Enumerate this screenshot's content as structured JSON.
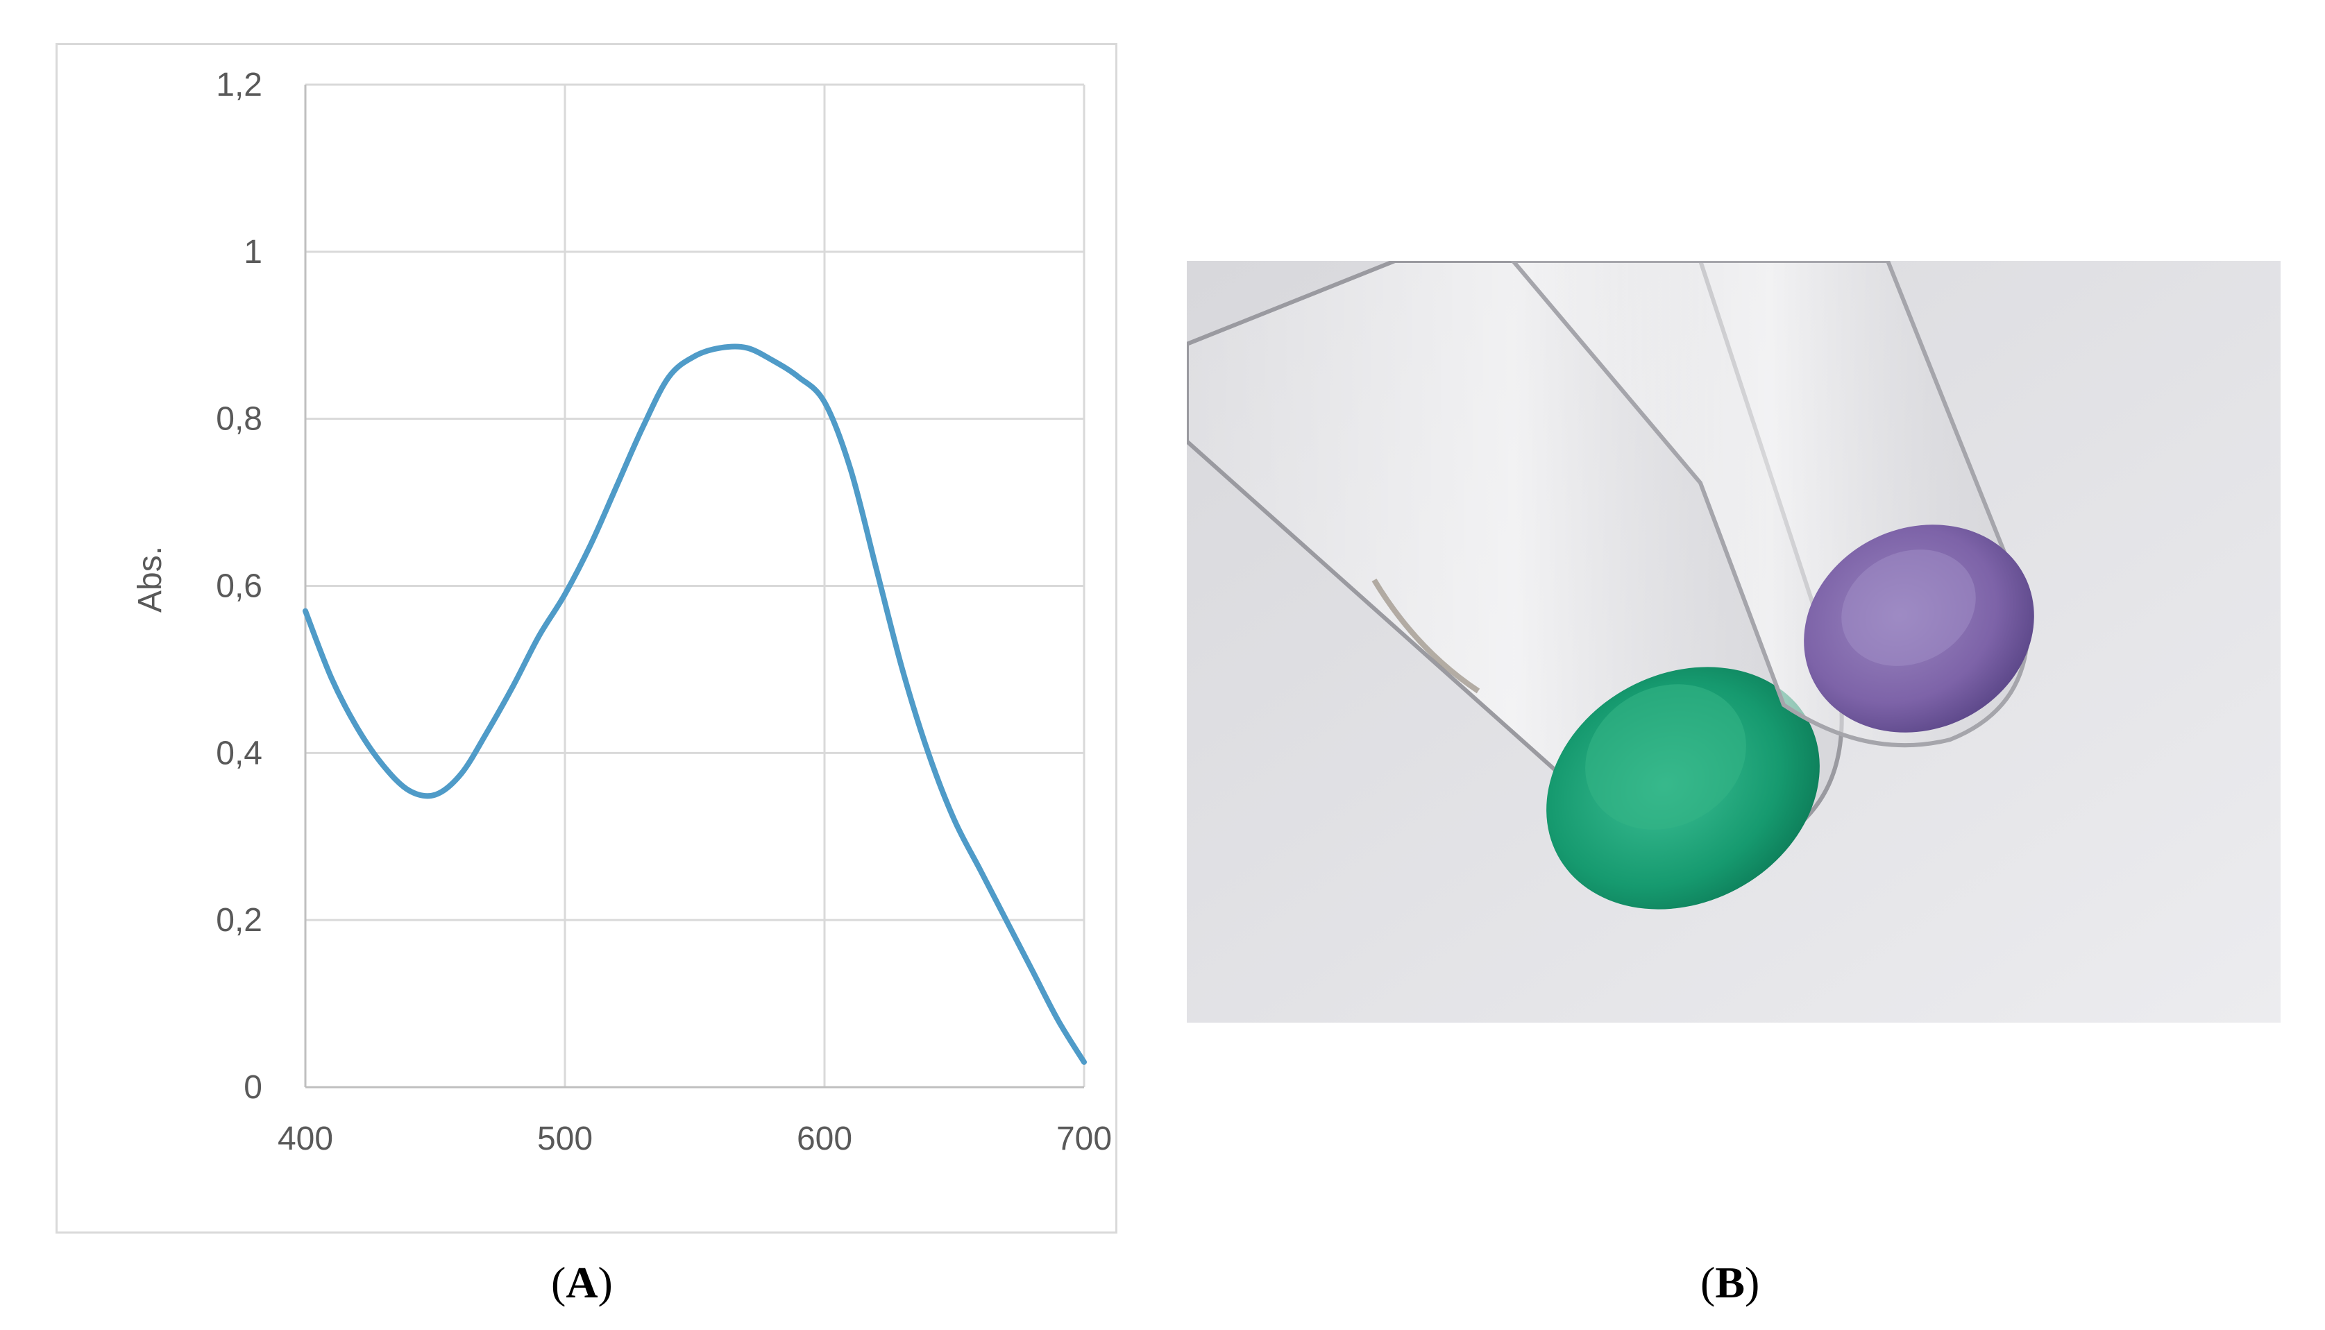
{
  "chart_data": {
    "type": "line",
    "title": "",
    "xlabel": "",
    "ylabel": "Abs.",
    "xlim": [
      400,
      700
    ],
    "ylim": [
      0,
      1.2
    ],
    "x_ticks": [
      400,
      500,
      600,
      700
    ],
    "x_tick_labels": [
      "400",
      "500",
      "600",
      "700"
    ],
    "y_ticks": [
      0,
      0.2,
      0.4,
      0.6,
      0.8,
      1,
      1.2
    ],
    "y_tick_labels": [
      "0",
      "0,2",
      "0,4",
      "0,6",
      "0,8",
      "1",
      "1,2"
    ],
    "grid": true,
    "legend": "none",
    "series": [
      {
        "color": "#4f9bc8",
        "x": [
          400,
          410,
          420,
          430,
          440,
          450,
          460,
          470,
          480,
          490,
          500,
          510,
          520,
          530,
          540,
          550,
          560,
          570,
          580,
          590,
          600,
          610,
          620,
          630,
          640,
          650,
          660,
          670,
          680,
          690,
          700
        ],
        "y": [
          0.57,
          0.49,
          0.43,
          0.385,
          0.355,
          0.35,
          0.375,
          0.425,
          0.48,
          0.54,
          0.59,
          0.65,
          0.72,
          0.79,
          0.85,
          0.875,
          0.885,
          0.885,
          0.87,
          0.85,
          0.82,
          0.74,
          0.62,
          0.5,
          0.4,
          0.32,
          0.26,
          0.2,
          0.14,
          0.08,
          0.03
        ]
      }
    ]
  },
  "panels": {
    "a_label_open": "(",
    "a_label_letter": "A",
    "a_label_close": ")",
    "b_label_open": "(",
    "b_label_letter": "B",
    "b_label_close": ")"
  },
  "photo": {
    "background": "#e6e6e9",
    "green_solution": "#1fa27a",
    "purple_solution": "#7d63a8"
  }
}
